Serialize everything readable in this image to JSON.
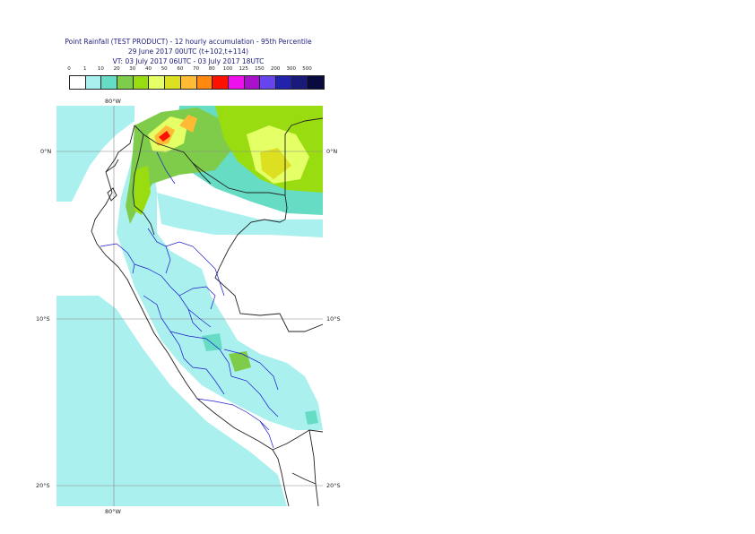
{
  "title": {
    "line1": "Point Rainfall (TEST PRODUCT) - 12 hourly accumulation - 95th Percentile",
    "line2": "29 June 2017 00UTC (t+102,t+114)",
    "line3": "VT: 03 July 2017 06UTC - 03 July 2017 18UTC"
  },
  "legend": {
    "ticks": [
      "0",
      "1",
      "10",
      "20",
      "30",
      "40",
      "50",
      "60",
      "70",
      "80",
      "100",
      "125",
      "150",
      "200",
      "300",
      "500"
    ],
    "colors": [
      "#ffffff",
      "#aaf0ee",
      "#66dcc4",
      "#7fcc4a",
      "#99dd11",
      "#e5ff66",
      "#dde020",
      "#ffbb33",
      "#ff8811",
      "#ff1100",
      "#ee11ee",
      "#aa11cc",
      "#6644ee",
      "#2222aa",
      "#1a1a7a",
      "#0a0a40"
    ]
  },
  "map": {
    "lon_label_top": "80°W",
    "lon_label_bottom": "80°W",
    "lat_labels": [
      "0°N",
      "10°S",
      "20°S"
    ],
    "colors": {
      "ocean_light": "#aaf0ee",
      "mid": "#66dcc4",
      "green": "#7fcc4a",
      "lime": "#99dd11",
      "yellow": "#e5ff66",
      "orange": "#ffbb33",
      "red": "#ff1100",
      "border": "#222222",
      "region": "#1a1acc",
      "grid": "#888888"
    }
  }
}
